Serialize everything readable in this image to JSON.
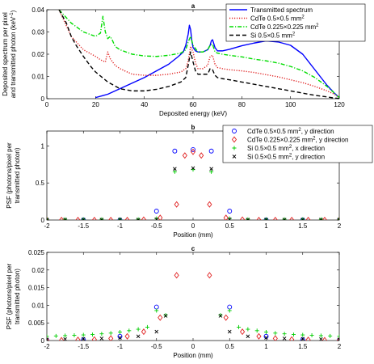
{
  "chart_data": [
    {
      "type": "line",
      "panel": "a",
      "title": "a",
      "xlabel": "Deposited energy (keV)",
      "ylabel": [
        "Deposited spectrum per pixel",
        "and transmitted photon (keV",
        "-1",
        ")"
      ],
      "xlim": [
        0,
        120
      ],
      "ylim": [
        0,
        0.04
      ],
      "xticks": [
        0,
        20,
        40,
        60,
        80,
        100,
        120
      ],
      "yticks": [
        0,
        0.01,
        0.02,
        0.03,
        0.04
      ],
      "ytick_labels": [
        "0",
        "0.01",
        "0.02",
        "0.03",
        "0.04"
      ],
      "legend_position": "top-right",
      "series": [
        {
          "name": "Transmitted spectrum",
          "color": "#0000ff",
          "dash": "solid",
          "x": [
            20,
            25,
            30,
            35,
            40,
            45,
            50,
            54,
            56,
            57,
            58,
            58.5,
            59,
            59.5,
            60,
            61,
            62,
            64,
            66,
            67,
            67.5,
            68,
            69,
            70,
            72,
            75,
            80,
            85,
            90,
            95,
            100,
            105,
            110,
            115,
            118,
            120
          ],
          "y": [
            0.0005,
            0.002,
            0.0045,
            0.007,
            0.0095,
            0.0125,
            0.0155,
            0.019,
            0.021,
            0.024,
            0.029,
            0.033,
            0.031,
            0.026,
            0.023,
            0.0215,
            0.021,
            0.021,
            0.022,
            0.024,
            0.026,
            0.0265,
            0.023,
            0.0215,
            0.0215,
            0.0222,
            0.0238,
            0.025,
            0.026,
            0.0255,
            0.024,
            0.02,
            0.013,
            0.006,
            0.0025,
            0.0005
          ]
        },
        {
          "name": "CdTe 0.5×0.5 mm",
          "name_sup": "2",
          "color": "#e02020",
          "dash": "dotted",
          "x": [
            5,
            10,
            15,
            20,
            22,
            24,
            25,
            26,
            27,
            28,
            30,
            35,
            40,
            45,
            50,
            55,
            57,
            58,
            59,
            60,
            61,
            62,
            64,
            66,
            67,
            68,
            69,
            70,
            72,
            75,
            80,
            85,
            90,
            95,
            100,
            105,
            110,
            115,
            118,
            120
          ],
          "y": [
            0.04,
            0.028,
            0.022,
            0.019,
            0.0175,
            0.0165,
            0.021,
            0.018,
            0.0165,
            0.015,
            0.0135,
            0.011,
            0.0105,
            0.0105,
            0.011,
            0.012,
            0.0135,
            0.017,
            0.0235,
            0.021,
            0.016,
            0.0135,
            0.0135,
            0.015,
            0.019,
            0.0195,
            0.0155,
            0.014,
            0.0135,
            0.013,
            0.0125,
            0.0118,
            0.0108,
            0.0098,
            0.0085,
            0.0072,
            0.0055,
            0.0035,
            0.002,
            0.0005
          ]
        },
        {
          "name": "CdTe 0.225×0.225 mm",
          "name_sup": "2",
          "color": "#00dd00",
          "dash": "dash-dot",
          "x": [
            5,
            10,
            15,
            20,
            22,
            23,
            24,
            25,
            26,
            27,
            28,
            30,
            35,
            40,
            45,
            50,
            55,
            57,
            58,
            59,
            60,
            62,
            64,
            66,
            67,
            68,
            69,
            70,
            72,
            75,
            80,
            85,
            90,
            95,
            100,
            105,
            110,
            115,
            118,
            120
          ],
          "y": [
            0.04,
            0.034,
            0.03,
            0.028,
            0.0295,
            0.037,
            0.03,
            0.027,
            0.028,
            0.026,
            0.0235,
            0.022,
            0.02,
            0.0192,
            0.019,
            0.0195,
            0.0205,
            0.022,
            0.0255,
            0.028,
            0.024,
            0.021,
            0.021,
            0.022,
            0.024,
            0.0245,
            0.021,
            0.0205,
            0.02,
            0.0195,
            0.0188,
            0.0178,
            0.017,
            0.016,
            0.0145,
            0.0125,
            0.0095,
            0.0055,
            0.0025,
            0.0005
          ]
        },
        {
          "name": "Si 0.5×0.5 mm",
          "name_sup": "2",
          "color": "#000000",
          "dash": "dashed",
          "x": [
            5,
            8,
            10,
            12,
            15,
            18,
            20,
            25,
            30,
            35,
            40,
            45,
            50,
            55,
            57,
            58,
            59,
            60,
            61,
            62,
            64,
            66,
            67,
            68,
            69,
            70,
            72,
            75,
            80,
            85,
            90,
            95,
            100,
            105,
            110,
            115,
            118,
            120
          ],
          "y": [
            0.04,
            0.034,
            0.028,
            0.024,
            0.019,
            0.0145,
            0.012,
            0.0075,
            0.0045,
            0.0035,
            0.0035,
            0.0042,
            0.0055,
            0.0075,
            0.0095,
            0.015,
            0.021,
            0.0165,
            0.0125,
            0.011,
            0.011,
            0.011,
            0.0135,
            0.013,
            0.0105,
            0.0095,
            0.009,
            0.0085,
            0.0075,
            0.0065,
            0.0055,
            0.0045,
            0.0035,
            0.0025,
            0.0015,
            0.0008,
            0.0003,
            0.0001
          ]
        }
      ]
    },
    {
      "type": "scatter",
      "panel": "b",
      "title": "b",
      "xlabel": "Position (mm)",
      "ylabel": [
        "PSF (photons/pixel per",
        "transmitted photon)"
      ],
      "xlim": [
        -2,
        2
      ],
      "ylim": [
        0,
        1.2
      ],
      "xticks": [
        -2,
        -1.5,
        -1,
        -0.5,
        0,
        0.5,
        1,
        1.5,
        2
      ],
      "xtick_labels": [
        "-2",
        "-1.5",
        "-1",
        "-0.5",
        "0",
        "0.5",
        "1",
        "1.5",
        "2"
      ],
      "yticks": [
        0,
        0.5,
        1
      ],
      "ytick_labels": [
        "0",
        "0.5",
        "1"
      ],
      "legend_position": "top-right",
      "series": [
        {
          "name": "CdTe 0.5×0.5 mm",
          "name_sup": "2",
          "name_suffix": ", y direction",
          "marker": "circle",
          "color": "#0000ff",
          "x": [
            -2,
            -1.5,
            -1,
            -0.5,
            -0.25,
            0,
            0.25,
            0.5,
            1,
            1.5,
            2
          ],
          "y": [
            0,
            0,
            0,
            0.12,
            0.93,
            0.95,
            0.93,
            0.12,
            0,
            0,
            0
          ]
        },
        {
          "name": "CdTe 0.225×0.225 mm",
          "name_sup": "2",
          "name_suffix": ", y direction",
          "marker": "diamond",
          "color": "#e02020",
          "x": [
            -2,
            -1.8,
            -1.575,
            -1.35,
            -1.125,
            -0.9,
            -0.675,
            -0.45,
            -0.225,
            -0.1125,
            0,
            0.1125,
            0.225,
            0.45,
            0.675,
            0.9,
            1.125,
            1.35,
            1.575,
            1.8,
            2
          ],
          "y": [
            0,
            0,
            0,
            0,
            0,
            0,
            0.005,
            0.03,
            0.21,
            0.87,
            0.92,
            0.87,
            0.21,
            0.03,
            0.005,
            0,
            0,
            0,
            0,
            0,
            0
          ]
        },
        {
          "name": "Si 0.5×0.5 mm",
          "name_sup": "2",
          "name_suffix": ", x direction",
          "marker": "plus",
          "color": "#00cc00",
          "x": [
            -2,
            -1.75,
            -1.5,
            -1.25,
            -1,
            -0.75,
            -0.5,
            -0.25,
            0,
            0.25,
            0.5,
            0.75,
            1,
            1.25,
            1.5,
            1.75,
            2
          ],
          "y": [
            0.01,
            0.01,
            0.01,
            0.01,
            0.01,
            0.01,
            0.02,
            0.65,
            0.68,
            0.65,
            0.02,
            0.01,
            0.01,
            0.01,
            0.01,
            0.01,
            0.01
          ]
        },
        {
          "name": "Si 0.5×0.5 mm",
          "name_sup": "2",
          "name_suffix": ", y direction",
          "marker": "cross",
          "color": "#000000",
          "x": [
            -2,
            -1.75,
            -1.5,
            -1.25,
            -1,
            -0.75,
            -0.5,
            -0.25,
            0,
            0.25,
            0.5,
            0.75,
            1,
            1.25,
            1.5,
            1.75,
            2
          ],
          "y": [
            0.005,
            0.005,
            0.005,
            0.005,
            0.005,
            0.005,
            0.01,
            0.69,
            0.7,
            0.69,
            0.01,
            0.005,
            0.005,
            0.005,
            0.005,
            0.005,
            0.005
          ]
        }
      ]
    },
    {
      "type": "scatter",
      "panel": "c",
      "title": "c",
      "xlabel": "Position (mm)",
      "ylabel": [
        "PSF (photons/pixel per",
        "transmitted photon)"
      ],
      "xlim": [
        -2,
        2
      ],
      "ylim": [
        0,
        0.025
      ],
      "xticks": [
        -2,
        -1.5,
        -1,
        -0.5,
        0,
        0.5,
        1,
        1.5,
        2
      ],
      "xtick_labels": [
        "-2",
        "-1.5",
        "-1",
        "-0.5",
        "0",
        "0.5",
        "1",
        "1.5",
        "2"
      ],
      "yticks": [
        0,
        0.005,
        0.01,
        0.015,
        0.02,
        0.025
      ],
      "ytick_labels": [
        "0",
        "0.005",
        "0.01",
        "0.015",
        "0.02",
        "0.025"
      ],
      "series": [
        {
          "marker": "circle",
          "color": "#0000ff",
          "x": [
            -2,
            -1.5,
            -1,
            -0.5,
            0.5,
            1,
            1.5,
            2
          ],
          "y": [
            0.0001,
            0.0002,
            0.0012,
            0.0095,
            0.0095,
            0.0012,
            0.0002,
            0.0001
          ]
        },
        {
          "marker": "diamond",
          "color": "#e02020",
          "x": [
            -2,
            -1.8,
            -1.575,
            -1.35,
            -1.125,
            -0.9,
            -0.675,
            -0.45,
            -0.225,
            0.225,
            0.45,
            0.675,
            0.9,
            1.125,
            1.35,
            1.575,
            1.8,
            2
          ],
          "y": [
            0.0001,
            0.0001,
            0.0002,
            0.0003,
            0.0006,
            0.0012,
            0.0025,
            0.0065,
            0.0185,
            0.0185,
            0.0065,
            0.0025,
            0.0012,
            0.0006,
            0.0003,
            0.0002,
            0.0001,
            0.0001
          ]
        },
        {
          "marker": "plus",
          "color": "#00cc00",
          "x": [
            -2,
            -1.875,
            -1.75,
            -1.625,
            -1.5,
            -1.375,
            -1.25,
            -1.125,
            -1,
            -0.875,
            -0.75,
            -0.625,
            -0.5,
            -0.375,
            0.375,
            0.5,
            0.625,
            0.75,
            0.875,
            1,
            1.125,
            1.25,
            1.375,
            1.5,
            1.625,
            1.75,
            1.875,
            2
          ],
          "y": [
            0.0012,
            0.0013,
            0.0014,
            0.0015,
            0.0016,
            0.0017,
            0.0019,
            0.0021,
            0.0024,
            0.0028,
            0.0032,
            0.0038,
            0.0085,
            0.0072,
            0.0072,
            0.0085,
            0.0038,
            0.0032,
            0.0028,
            0.0024,
            0.0021,
            0.0019,
            0.0017,
            0.0016,
            0.0015,
            0.0014,
            0.0013,
            0.0012
          ]
        },
        {
          "marker": "cross",
          "color": "#000000",
          "x": [
            -2,
            -1.75,
            -1.5,
            -1.25,
            -1,
            -0.75,
            -0.5,
            -0.375,
            0.375,
            0.5,
            0.75,
            1,
            1.25,
            1.5,
            1.75,
            2
          ],
          "y": [
            0.0003,
            0.0004,
            0.0005,
            0.0006,
            0.0008,
            0.0012,
            0.0025,
            0.007,
            0.007,
            0.0025,
            0.0012,
            0.0008,
            0.0006,
            0.0005,
            0.0004,
            0.0003
          ]
        }
      ]
    }
  ]
}
